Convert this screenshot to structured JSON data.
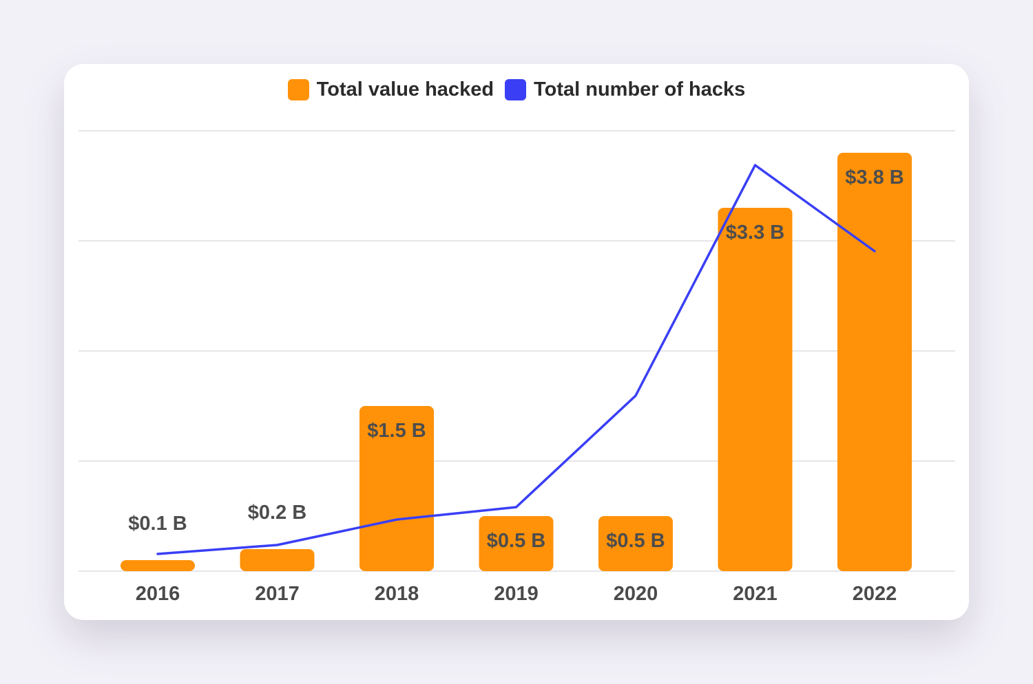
{
  "colors": {
    "background": "#f3f1f8",
    "card": "#ffffff",
    "bar": "#ff9209",
    "line": "#3a3ff5",
    "grid": "#e6e6ea",
    "text": "#4a4a4a"
  },
  "chart_data": {
    "type": "bar",
    "categories": [
      "2016",
      "2017",
      "2018",
      "2019",
      "2020",
      "2021",
      "2022"
    ],
    "series": [
      {
        "name": "Total value hacked",
        "type": "bar",
        "color": "#ff9209",
        "values": [
          0.1,
          0.2,
          1.5,
          0.5,
          0.5,
          3.3,
          3.8
        ],
        "labels": [
          "$0.1 B",
          "$0.2 B",
          "$1.5 B",
          "$0.5 B",
          "$0.5 B",
          "$3.3 B",
          "$3.8 B"
        ]
      },
      {
        "name": "Total number of hacks",
        "type": "line",
        "color": "#3a3ff5",
        "values": [
          25,
          38,
          75,
          93,
          255,
          590,
          465
        ]
      }
    ],
    "ylim": [
      0,
      4
    ],
    "line_ylim": [
      0,
      640
    ],
    "grid": true,
    "legend": "top-center",
    "xlabel": "",
    "ylabel": ""
  }
}
